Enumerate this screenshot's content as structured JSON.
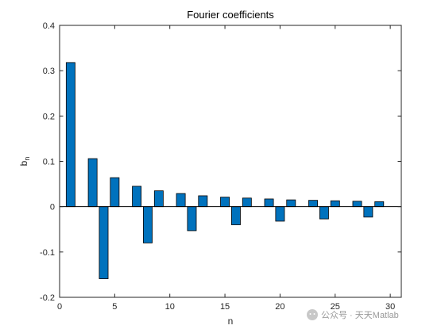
{
  "chart_data": {
    "type": "bar",
    "title": "Fourier coefficients",
    "xlabel": "n",
    "ylabel": "b",
    "ylabel_subscript": "n",
    "xlim": [
      0,
      31
    ],
    "ylim": [
      -0.2,
      0.4
    ],
    "xticks": [
      0,
      5,
      10,
      15,
      20,
      25,
      30
    ],
    "yticks": [
      -0.2,
      -0.1,
      0,
      0.1,
      0.2,
      0.3,
      0.4
    ],
    "grid": false,
    "baseline": 0,
    "bar_color": "#0072BD",
    "series": [
      {
        "x": [
          1,
          3,
          4,
          5,
          7,
          8,
          9,
          11,
          12,
          13,
          15,
          16,
          17,
          19,
          20,
          21,
          23,
          24,
          25,
          27,
          28,
          29
        ],
        "values": [
          0.318,
          0.106,
          -0.159,
          0.064,
          0.045,
          -0.08,
          0.035,
          0.029,
          -0.053,
          0.024,
          0.021,
          -0.04,
          0.019,
          0.017,
          -0.032,
          0.015,
          0.014,
          -0.027,
          0.013,
          0.012,
          -0.023,
          0.011
        ]
      }
    ]
  },
  "watermark": "公众号 · 天天Matlab"
}
